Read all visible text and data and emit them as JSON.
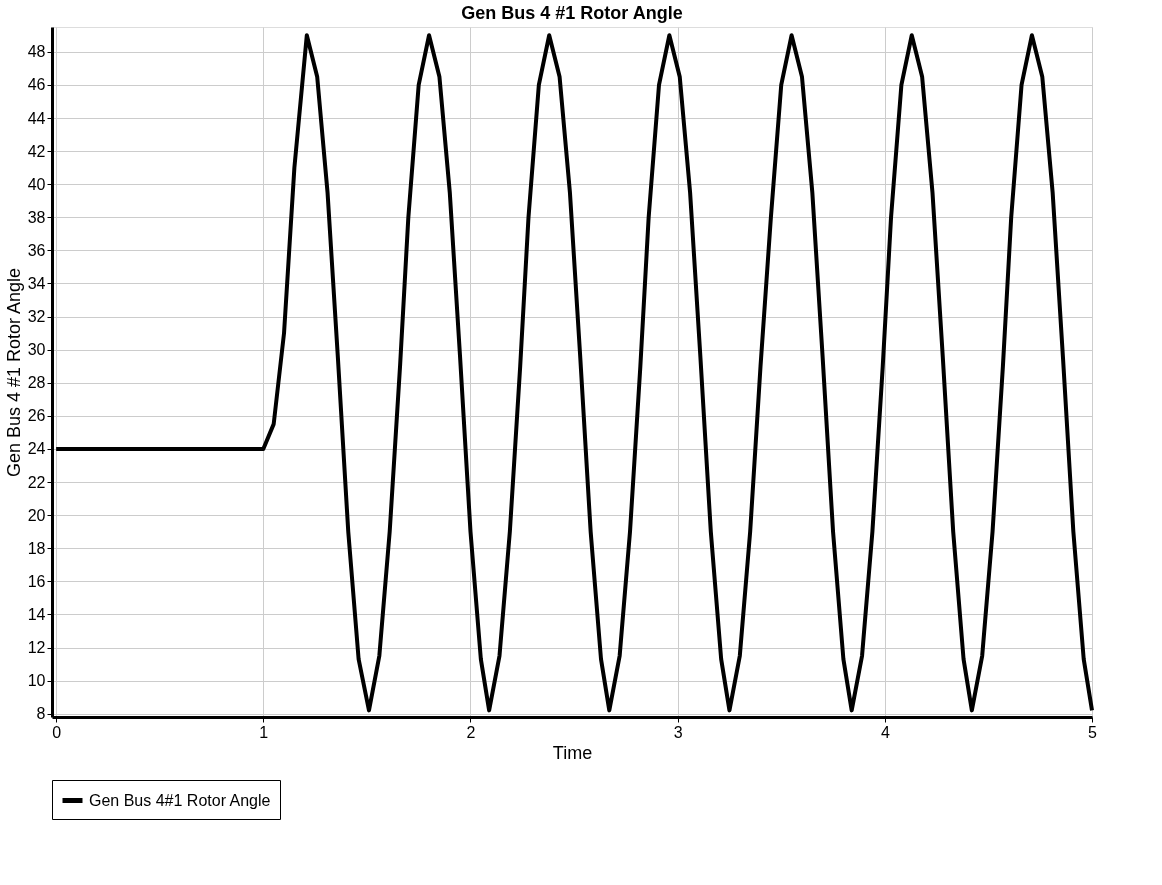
{
  "chart_data": {
    "type": "line",
    "title": "Gen Bus 4 #1 Rotor Angle",
    "xlabel": "Time",
    "ylabel": "Gen Bus 4 #1 Rotor Angle",
    "x": [
      0,
      1.0,
      1.05,
      1.1,
      1.15,
      1.21,
      1.26,
      1.31,
      1.36,
      1.41,
      1.46,
      1.51,
      1.56,
      1.61,
      1.66,
      1.7,
      1.75,
      1.8,
      1.85,
      1.9,
      1.95,
      2.0,
      2.05,
      2.09,
      2.14,
      2.19,
      2.24,
      2.28,
      2.33,
      2.38,
      2.43,
      2.48,
      2.53,
      2.58,
      2.63,
      2.67,
      2.72,
      2.77,
      2.82,
      2.86,
      2.91,
      2.96,
      3.01,
      3.06,
      3.11,
      3.16,
      3.21,
      3.25,
      3.3,
      3.35,
      3.4,
      3.45,
      3.5,
      3.55,
      3.6,
      3.65,
      3.7,
      3.75,
      3.8,
      3.84,
      3.89,
      3.94,
      3.99,
      4.03,
      4.08,
      4.13,
      4.18,
      4.23,
      4.28,
      4.33,
      4.38,
      4.42,
      4.47,
      4.52,
      4.57,
      4.61,
      4.66,
      4.71,
      4.76,
      4.81,
      4.86,
      4.91,
      4.96,
      5.0
    ],
    "series": [
      {
        "name": "Gen Bus 4#1 Rotor Angle",
        "color": "#000000",
        "values": [
          24,
          24,
          25.5,
          31,
          41,
          49,
          46.5,
          39.5,
          29.5,
          19,
          11.3,
          8.2,
          11.5,
          19,
          29,
          38,
          46,
          49,
          46.5,
          39.5,
          29.5,
          19,
          11.3,
          8.2,
          11.5,
          19,
          29,
          38,
          46,
          49,
          46.5,
          39.5,
          29.5,
          19,
          11.3,
          8.2,
          11.5,
          19,
          29,
          38,
          46,
          49,
          46.5,
          39.5,
          29.5,
          19,
          11.3,
          8.2,
          11.5,
          19,
          29,
          38,
          46,
          49,
          46.5,
          39.5,
          29.5,
          19,
          11.3,
          8.2,
          11.5,
          19,
          29,
          38,
          46,
          49,
          46.5,
          39.5,
          29.5,
          19,
          11.3,
          8.2,
          11.5,
          19,
          29,
          38,
          46,
          49,
          46.5,
          39.5,
          29.5,
          19,
          11.3,
          8.2
        ]
      }
    ],
    "xlim": [
      -0.02,
      5
    ],
    "xticks": [
      0,
      1,
      2,
      3,
      4,
      5
    ],
    "ylim": [
      7.8,
      49.5
    ],
    "yticks": [
      8,
      10,
      12,
      14,
      16,
      18,
      20,
      22,
      24,
      26,
      28,
      30,
      32,
      34,
      36,
      38,
      40,
      42,
      44,
      46,
      48
    ],
    "grid": true,
    "legend": "bottom",
    "line_style": "solid",
    "marker": "none"
  }
}
